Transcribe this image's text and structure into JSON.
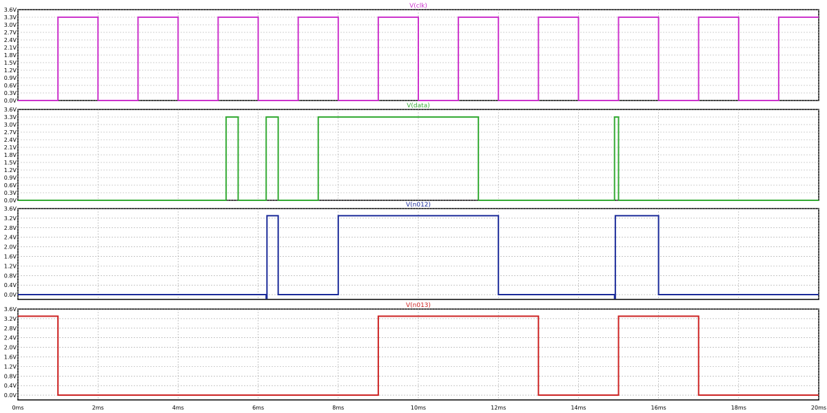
{
  "chart_data": {
    "type": "line",
    "xlabel": "",
    "ylabel": "",
    "xlim": [
      0,
      20
    ],
    "x_ticks": [
      "0ms",
      "2ms",
      "4ms",
      "6ms",
      "8ms",
      "10ms",
      "12ms",
      "14ms",
      "16ms",
      "18ms",
      "20ms"
    ],
    "grid": true,
    "panels": [
      {
        "title": "V(clk)",
        "color": "#cc33cc",
        "ylim": [
          0,
          3.6
        ],
        "y_ticks": [
          "0.0V",
          "0.3V",
          "0.6V",
          "0.9V",
          "1.2V",
          "1.5V",
          "1.8V",
          "2.1V",
          "2.4V",
          "2.7V",
          "3.0V",
          "3.3V",
          "3.6V"
        ],
        "series": [
          {
            "name": "V(clk)",
            "x": [
              0,
              1,
              1,
              2,
              2,
              3,
              3,
              4,
              4,
              5,
              5,
              6,
              6,
              7,
              7,
              8,
              8,
              9,
              9,
              10,
              10,
              11,
              11,
              12,
              12,
              13,
              13,
              14,
              14,
              15,
              15,
              16,
              16,
              17,
              17,
              18,
              18,
              19,
              19,
              20
            ],
            "y": [
              0,
              0,
              3.3,
              3.3,
              0,
              0,
              3.3,
              3.3,
              0,
              0,
              3.3,
              3.3,
              0,
              0,
              3.3,
              3.3,
              0,
              0,
              3.3,
              3.3,
              0,
              0,
              3.3,
              3.3,
              0,
              0,
              3.3,
              3.3,
              0,
              0,
              3.3,
              3.3,
              0,
              0,
              3.3,
              3.3,
              0,
              0,
              3.3,
              3.3
            ]
          }
        ]
      },
      {
        "title": "V(data)",
        "color": "#33aa33",
        "ylim": [
          0,
          3.6
        ],
        "y_ticks": [
          "0.0V",
          "0.3V",
          "0.6V",
          "0.9V",
          "1.2V",
          "1.5V",
          "1.8V",
          "2.1V",
          "2.4V",
          "2.7V",
          "3.0V",
          "3.3V",
          "3.6V"
        ],
        "series": [
          {
            "name": "V(data)",
            "x": [
              0,
              5.2,
              5.2,
              5.5,
              5.5,
              6.2,
              6.2,
              6.5,
              6.5,
              7.5,
              7.5,
              11.5,
              11.5,
              14.9,
              14.9,
              15.0,
              15.0,
              20
            ],
            "y": [
              0,
              0,
              3.3,
              3.3,
              0,
              0,
              3.3,
              3.3,
              0,
              0,
              3.3,
              3.3,
              0,
              0,
              3.3,
              3.3,
              0,
              0
            ]
          }
        ]
      },
      {
        "title": "V(n012)",
        "color": "#1a2a99",
        "ylim": [
          -0.2,
          3.6
        ],
        "y_ticks": [
          "0.0V",
          "0.4V",
          "0.8V",
          "1.2V",
          "1.6V",
          "2.0V",
          "2.4V",
          "2.8V",
          "3.2V",
          "3.6V"
        ],
        "series": [
          {
            "name": "V(n012)",
            "x": [
              0,
              6.2,
              6.2,
              6.22,
              6.22,
              6.5,
              6.5,
              8,
              8,
              12,
              12,
              14.9,
              14.9,
              14.92,
              14.92,
              16,
              16,
              20
            ],
            "y": [
              0,
              0,
              -0.15,
              -0.15,
              3.3,
              3.3,
              0,
              0,
              3.3,
              3.3,
              0,
              0,
              -0.15,
              -0.15,
              3.3,
              3.3,
              0,
              0
            ]
          }
        ]
      },
      {
        "title": "V(n013)",
        "color": "#cc2222",
        "ylim": [
          -0.2,
          3.6
        ],
        "y_ticks": [
          "0.0V",
          "0.4V",
          "0.8V",
          "1.2V",
          "1.6V",
          "2.0V",
          "2.4V",
          "2.8V",
          "3.2V",
          "3.6V"
        ],
        "series": [
          {
            "name": "V(n013)",
            "x": [
              0,
              1,
              1,
              9,
              9,
              13,
              13,
              15,
              15,
              17,
              17,
              20
            ],
            "y": [
              3.3,
              3.3,
              0,
              0,
              3.3,
              3.3,
              0,
              0,
              3.3,
              3.3,
              0,
              0
            ]
          }
        ]
      }
    ]
  }
}
